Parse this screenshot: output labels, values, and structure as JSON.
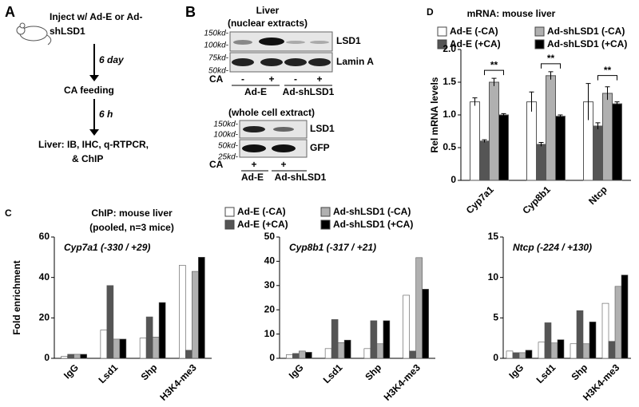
{
  "panel_a": {
    "label": "A",
    "steps": [
      "Inject w/ Ad-E or Ad-",
      "shLSD1",
      "CA feeding",
      "Liver: IB, IHC, q-RTPCR,",
      "& ChIP"
    ],
    "intervals": [
      "6 day",
      "6 h"
    ]
  },
  "panel_b": {
    "label": "B",
    "title": "Liver",
    "nuclear": {
      "title": "(nuclear extracts)",
      "markers": [
        "150kd-",
        "100kd-",
        "75kd-",
        "50kd-"
      ],
      "bands": [
        "LSD1",
        "Lamin A"
      ],
      "ca_label": "CA",
      "ca": [
        "-",
        "+",
        "-",
        "+"
      ],
      "groups": [
        "Ad-E",
        "Ad-shLSD1"
      ]
    },
    "whole_cell": {
      "title": "(whole cell extract)",
      "markers": [
        "150kd-",
        "100kd-",
        "50kd-",
        "25kd-"
      ],
      "bands": [
        "LSD1",
        "GFP"
      ],
      "ca_label": "CA",
      "ca": [
        "+",
        "+"
      ],
      "groups": [
        "Ad-E",
        "Ad-shLSD1"
      ]
    }
  },
  "chart_data": [
    {
      "type": "bar",
      "panel_label": "D",
      "title": "mRNA: mouse liver",
      "y_label": "Rel mRNA levels",
      "categories": [
        "Cyp7a1",
        "Cyp8b1",
        "Ntcp"
      ],
      "series": [
        {
          "name": "Ad-E (-CA)",
          "color": "#ffffff",
          "values": [
            1.2,
            1.2,
            1.2
          ],
          "errors": [
            0.06,
            0.15,
            0.28
          ]
        },
        {
          "name": "Ad-E (+CA)",
          "color": "#555555",
          "values": [
            0.6,
            0.55,
            0.83
          ],
          "errors": [
            0.02,
            0.03,
            0.05
          ]
        },
        {
          "name": "Ad-shLSD1 (-CA)",
          "color": "#b0b0b0",
          "values": [
            1.5,
            1.6,
            1.33
          ],
          "errors": [
            0.06,
            0.06,
            0.1
          ]
        },
        {
          "name": "Ad-shLSD1 (+CA)",
          "color": "#000000",
          "values": [
            1.0,
            0.98,
            1.17
          ],
          "errors": [
            0.02,
            0.02,
            0.03
          ]
        }
      ],
      "annotations": [
        "**",
        "**",
        "**"
      ],
      "ylim": [
        0,
        2
      ],
      "yticks": [
        0,
        0.5,
        {
          "value": 1,
          "label": "1.0"
        },
        1.5,
        {
          "value": 2,
          "label": "2.0"
        }
      ]
    },
    {
      "type": "bar-facets",
      "panel_label": "C",
      "title": "ChIP: mouse liver",
      "subtitle": "(pooled, n=3 mice)",
      "y_label": "Fold enrichment",
      "categories": [
        "IgG",
        "Lsd1",
        "Shp",
        "H3K4-me3"
      ],
      "legend": [
        {
          "name": "Ad-E (-CA)",
          "color": "#ffffff"
        },
        {
          "name": "Ad-E (+CA)",
          "color": "#555555"
        },
        {
          "name": "Ad-shLSD1 (-CA)",
          "color": "#b0b0b0"
        },
        {
          "name": "Ad-shLSD1 (+CA)",
          "color": "#000000"
        }
      ],
      "facets": [
        {
          "title": "Cyp7a1 (-330 / +29)",
          "ylim": [
            0,
            60
          ],
          "yticks": [
            0,
            20,
            40,
            60
          ],
          "series": [
            {
              "values": [
                1,
                14,
                10,
                46
              ]
            },
            {
              "values": [
                2,
                36,
                20.5,
                4
              ]
            },
            {
              "values": [
                2,
                9.5,
                10.5,
                43
              ]
            },
            {
              "values": [
                2,
                9.5,
                27.6,
                50
              ]
            }
          ]
        },
        {
          "title": "Cyp8b1 (-317 / +21)",
          "ylim": [
            0,
            50
          ],
          "yticks": [
            0,
            10,
            20,
            30,
            40,
            50
          ],
          "series": [
            {
              "values": [
                1.5,
                4,
                4,
                26
              ]
            },
            {
              "values": [
                2,
                16,
                15.5,
                3
              ]
            },
            {
              "values": [
                3,
                6.5,
                6,
                41.5
              ]
            },
            {
              "values": [
                2.5,
                7.5,
                15.5,
                28.5
              ]
            }
          ]
        },
        {
          "title": "Ntcp (-224 / +130)",
          "ylim": [
            0,
            15
          ],
          "yticks": [
            0,
            5,
            10,
            15
          ],
          "series": [
            {
              "values": [
                0.9,
                2,
                1.8,
                6.8
              ]
            },
            {
              "values": [
                0.7,
                4.4,
                5.9,
                2.1
              ]
            },
            {
              "values": [
                0.7,
                1.9,
                1.8,
                8.9
              ]
            },
            {
              "values": [
                1,
                2.3,
                4.5,
                10.3
              ]
            }
          ]
        }
      ]
    }
  ]
}
